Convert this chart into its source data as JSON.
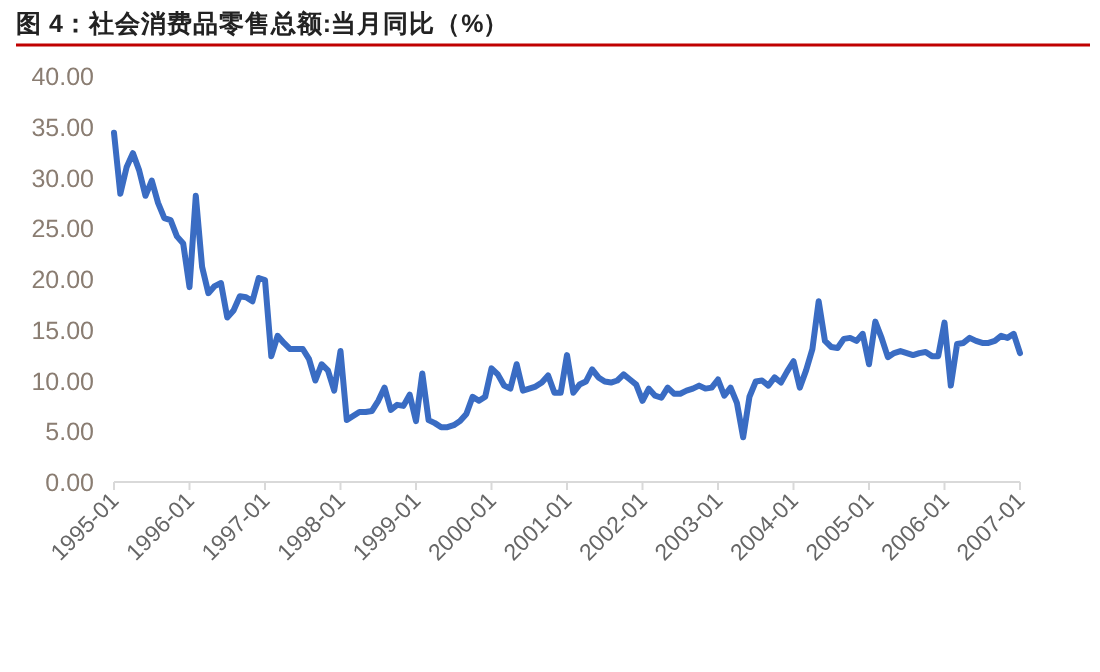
{
  "chart_data": {
    "type": "line",
    "title": "图 4：社会消费品零售总额:当月同比（%）",
    "x": [
      "1995-01",
      "1995-02",
      "1995-03",
      "1995-04",
      "1995-05",
      "1995-06",
      "1995-07",
      "1995-08",
      "1995-09",
      "1995-10",
      "1995-11",
      "1995-12",
      "1996-01",
      "1996-02",
      "1996-03",
      "1996-04",
      "1996-05",
      "1996-06",
      "1996-07",
      "1996-08",
      "1996-09",
      "1996-10",
      "1996-11",
      "1996-12",
      "1997-01",
      "1997-02",
      "1997-03",
      "1997-04",
      "1997-05",
      "1997-06",
      "1997-07",
      "1997-08",
      "1997-09",
      "1997-10",
      "1997-11",
      "1997-12",
      "1998-01",
      "1998-02",
      "1998-03",
      "1998-04",
      "1998-05",
      "1998-06",
      "1998-07",
      "1998-08",
      "1998-09",
      "1998-10",
      "1998-11",
      "1998-12",
      "1999-01",
      "1999-02",
      "1999-03",
      "1999-04",
      "1999-05",
      "1999-06",
      "1999-07",
      "1999-08",
      "1999-09",
      "1999-10",
      "1999-11",
      "1999-12",
      "2000-01",
      "2000-02",
      "2000-03",
      "2000-04",
      "2000-05",
      "2000-06",
      "2000-07",
      "2000-08",
      "2000-09",
      "2000-10",
      "2000-11",
      "2000-12",
      "2001-01",
      "2001-02",
      "2001-03",
      "2001-04",
      "2001-05",
      "2001-06",
      "2001-07",
      "2001-08",
      "2001-09",
      "2001-10",
      "2001-11",
      "2001-12",
      "2002-01",
      "2002-02",
      "2002-03",
      "2002-04",
      "2002-05",
      "2002-06",
      "2002-07",
      "2002-08",
      "2002-09",
      "2002-10",
      "2002-11",
      "2002-12",
      "2003-01",
      "2003-02",
      "2003-03",
      "2003-04",
      "2003-05",
      "2003-06",
      "2003-07",
      "2003-08",
      "2003-09",
      "2003-10",
      "2003-11",
      "2003-12",
      "2004-01",
      "2004-02",
      "2004-03",
      "2004-04",
      "2004-05",
      "2004-06",
      "2004-07",
      "2004-08",
      "2004-09",
      "2004-10",
      "2004-11",
      "2004-12",
      "2005-01",
      "2005-02",
      "2005-03",
      "2005-04",
      "2005-05",
      "2005-06",
      "2005-07",
      "2005-08",
      "2005-09",
      "2005-10",
      "2005-11",
      "2005-12",
      "2006-01",
      "2006-02",
      "2006-03",
      "2006-04",
      "2006-05",
      "2006-06",
      "2006-07",
      "2006-08",
      "2006-09",
      "2006-10",
      "2006-11",
      "2006-12",
      "2007-01"
    ],
    "series": [
      {
        "color": "#3a6cc3",
        "values": [
          34.4,
          28.4,
          31.0,
          32.4,
          30.7,
          28.2,
          29.7,
          27.5,
          26.0,
          25.8,
          24.2,
          23.5,
          19.2,
          28.2,
          21.2,
          18.6,
          19.3,
          19.6,
          16.2,
          16.9,
          18.3,
          18.2,
          17.8,
          20.1,
          19.9,
          12.4,
          14.4,
          13.7,
          13.1,
          13.1,
          13.1,
          12.1,
          10.0,
          11.6,
          11.0,
          9.0,
          12.9,
          6.1,
          6.5,
          6.9,
          6.9,
          7.0,
          8.0,
          9.3,
          7.1,
          7.6,
          7.5,
          8.6,
          6.0,
          10.7,
          6.1,
          5.8,
          5.4,
          5.4,
          5.6,
          6.0,
          6.7,
          8.4,
          8.0,
          8.4,
          11.2,
          10.6,
          9.5,
          9.2,
          11.6,
          9.0,
          9.2,
          9.4,
          9.8,
          10.5,
          8.8,
          8.8,
          12.5,
          8.8,
          9.6,
          9.9,
          11.1,
          10.3,
          9.9,
          9.8,
          10.0,
          10.6,
          10.1,
          9.6,
          8.0,
          9.2,
          8.5,
          8.3,
          9.3,
          8.7,
          8.7,
          9.0,
          9.2,
          9.5,
          9.2,
          9.3,
          10.1,
          8.5,
          9.3,
          7.8,
          4.4,
          8.4,
          9.9,
          10.0,
          9.5,
          10.3,
          9.8,
          10.9,
          11.9,
          9.3,
          11.0,
          13.1,
          17.8,
          13.9,
          13.3,
          13.2,
          14.1,
          14.2,
          13.9,
          14.6,
          11.6,
          15.8,
          14.2,
          12.3,
          12.7,
          12.9,
          12.7,
          12.5,
          12.7,
          12.8,
          12.4,
          12.4,
          15.7,
          9.5,
          13.6,
          13.7,
          14.2,
          13.9,
          13.7,
          13.7,
          13.9,
          14.4,
          14.2,
          14.6,
          12.7
        ]
      }
    ],
    "xlim": [
      "1995-01",
      "2007-01"
    ],
    "xticks": [
      "1995-01",
      "1996-01",
      "1997-01",
      "1998-01",
      "1999-01",
      "2000-01",
      "2001-01",
      "2002-01",
      "2003-01",
      "2004-01",
      "2005-01",
      "2006-01",
      "2007-01"
    ],
    "ylim": [
      0,
      40
    ],
    "yticks": [
      {
        "value": 0,
        "label": "0.00"
      },
      {
        "value": 5,
        "label": "5.00"
      },
      {
        "value": 10,
        "label": "10.00"
      },
      {
        "value": 15,
        "label": "15.00"
      },
      {
        "value": 20,
        "label": "20.00"
      },
      {
        "value": 25,
        "label": "25.00"
      },
      {
        "value": 30,
        "label": "30.00"
      },
      {
        "value": 35,
        "label": "35.00"
      },
      {
        "value": 40,
        "label": "40.00"
      }
    ],
    "grid": false,
    "marker": "none",
    "line_style": "solid"
  }
}
